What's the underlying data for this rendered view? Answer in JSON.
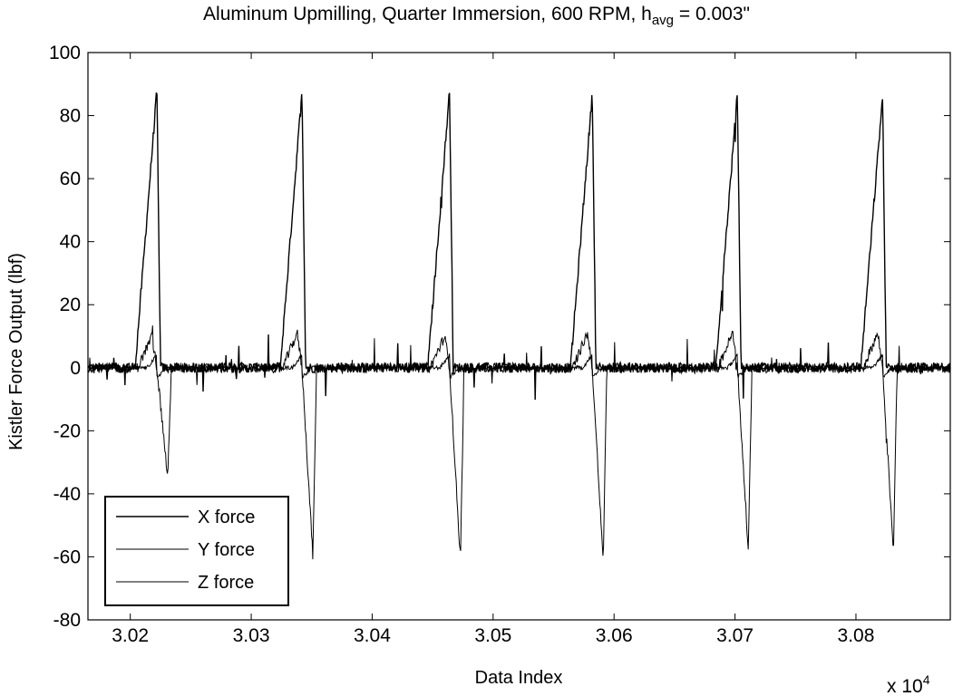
{
  "title": {
    "prefix": "Aluminum Upmilling, Quarter Immersion, 600 RPM, h",
    "subscript": "avg",
    "suffix": " = 0.003\""
  },
  "chart_data": {
    "type": "line",
    "xlabel": "Data Index",
    "ylabel": "Kistler Force Output (lbf)",
    "x_multiplier_label": "x 10",
    "x_multiplier_exponent": "4",
    "xlim": [
      3.0165,
      3.0878
    ],
    "ylim": [
      -80,
      100
    ],
    "x_ticks": [
      3.02,
      3.03,
      3.04,
      3.05,
      3.06,
      3.07,
      3.08
    ],
    "x_tick_labels": [
      "3.02",
      "3.03",
      "3.04",
      "3.05",
      "3.06",
      "3.07",
      "3.08"
    ],
    "y_ticks": [
      -80,
      -60,
      -40,
      -20,
      0,
      20,
      40,
      60,
      80,
      100
    ],
    "y_tick_labels": [
      "-80",
      "-60",
      "-40",
      "-20",
      "0",
      "20",
      "40",
      "60",
      "80",
      "100"
    ],
    "grid": false,
    "legend_position": "bottom-left",
    "line_color": "#000000",
    "peak_x": [
      3.0222,
      3.0342,
      3.0464,
      3.0582,
      3.0702,
      3.0822
    ],
    "series": [
      {
        "name": "X force",
        "peak_max": [
          88,
          88,
          88,
          87,
          87,
          86
        ],
        "peak_min": [
          -1,
          -1,
          -2,
          -2,
          -2,
          -2
        ]
      },
      {
        "name": "Y force",
        "peak_max": [
          10,
          11,
          10,
          11,
          11,
          11
        ],
        "peak_min": [
          -35,
          -60,
          -61,
          -62,
          -58,
          -58
        ]
      },
      {
        "name": "Z force",
        "peak_max": [
          4,
          4,
          4,
          4,
          4,
          4
        ],
        "peak_min": [
          -3,
          -3,
          -3,
          -3,
          -3,
          -3
        ]
      }
    ]
  }
}
